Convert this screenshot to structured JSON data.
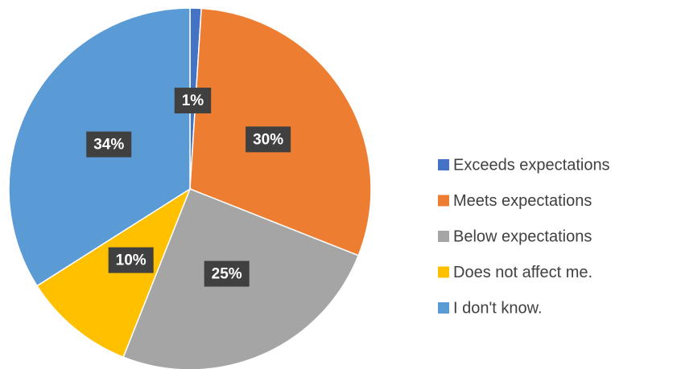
{
  "chart_data": {
    "type": "pie",
    "categories": [
      "Exceeds expectations",
      "Meets expectations",
      "Below expectations",
      "Does not affect me.",
      "I don't know."
    ],
    "values": [
      1,
      30,
      25,
      10,
      34
    ],
    "value_labels": [
      "1%",
      "30%",
      "25%",
      "10%",
      "34%"
    ],
    "colors": [
      "#4472c4",
      "#ed7d31",
      "#a5a5a5",
      "#ffc000",
      "#5b9bd5"
    ],
    "legend": "right"
  }
}
